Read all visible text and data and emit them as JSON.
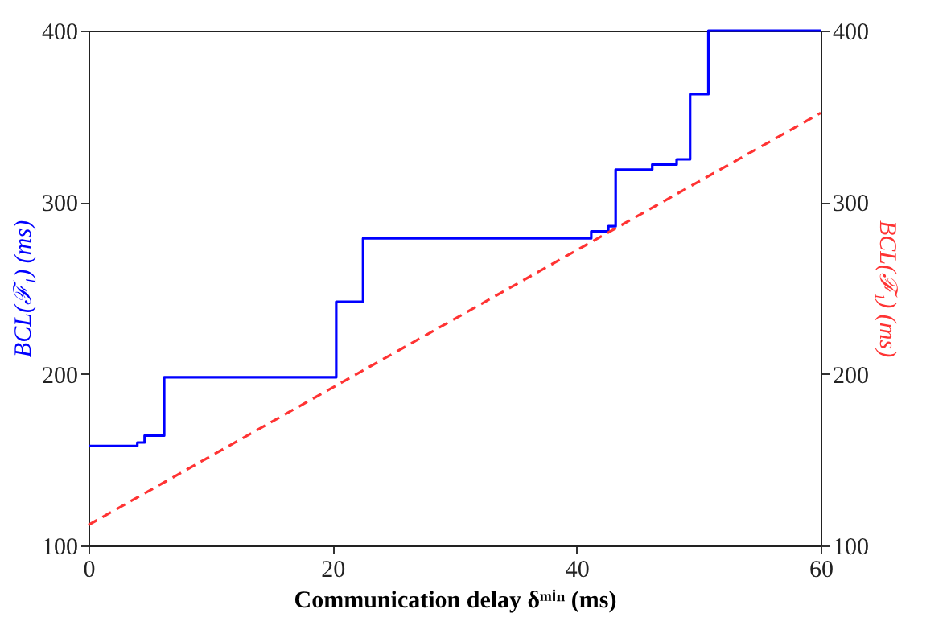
{
  "chart_data": {
    "type": "line",
    "xlabel": "Communication delay δᵐⁱⁿ (ms)",
    "ylabel": "BCL(ℱ₁) (ms)",
    "y2label": "BCL(ℱ₁) (ms)",
    "xlim": [
      0,
      60
    ],
    "xticks": [
      0,
      20,
      40,
      60
    ],
    "ylim": [
      100,
      400
    ],
    "yticks": [
      100,
      200,
      300,
      400
    ],
    "y2lim": [
      100,
      400
    ],
    "y2ticks": [
      100,
      200,
      300,
      400
    ],
    "series": [
      {
        "type": "step",
        "color": "#0000ff",
        "line_style": "solid",
        "x": [
          0,
          4,
          4.6,
          6.2,
          20.3,
          22.5,
          41.2,
          42.6,
          43.2,
          46.2,
          48.2,
          49.3,
          50.8,
          60
        ],
        "values": [
          158,
          160,
          164,
          198,
          242,
          279,
          283,
          286,
          319,
          322,
          325,
          363,
          400,
          400
        ]
      },
      {
        "type": "line",
        "axis": "y2",
        "color": "#ff3333",
        "line_style": "dashed",
        "x": [
          0,
          60
        ],
        "values": [
          112,
          352
        ]
      }
    ]
  }
}
